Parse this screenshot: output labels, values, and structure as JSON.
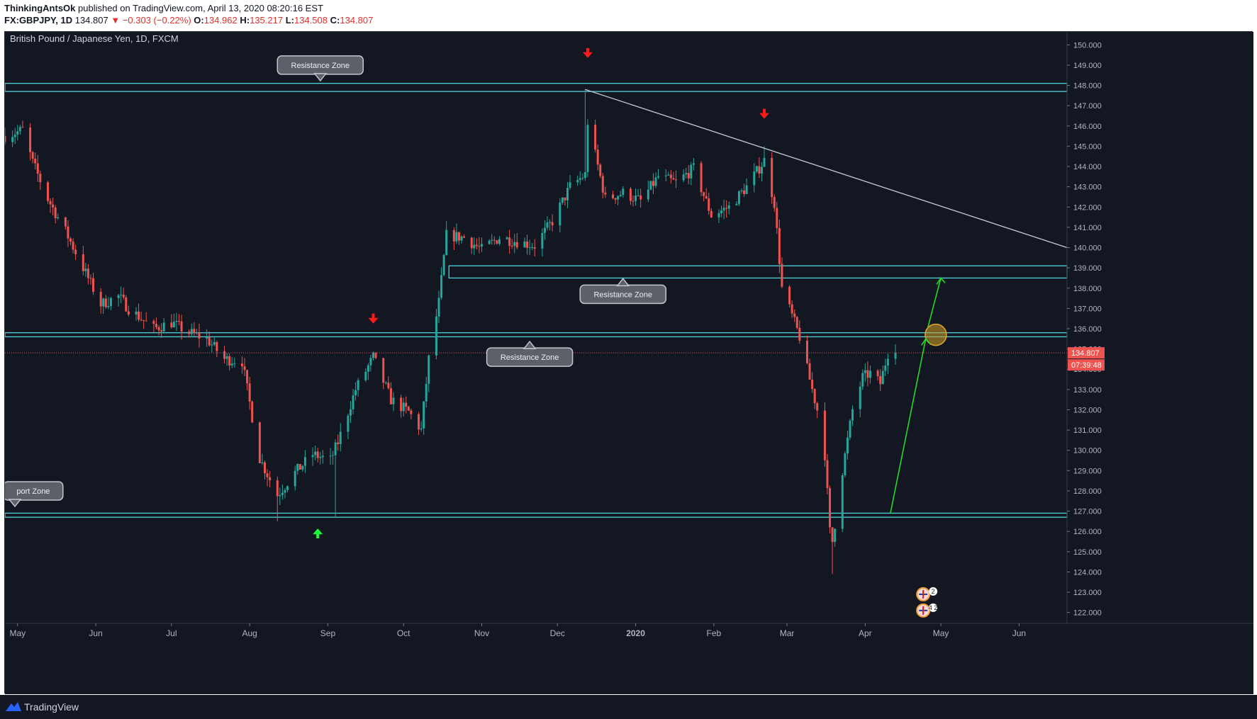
{
  "header": {
    "author": "ThinkingAntsOk",
    "published_text": " published on TradingView.com, April 13, 2020 08:20:16 EST",
    "symbol": "FX:GBPJPY, 1D",
    "last": "134.807",
    "change": "▼ −0.303 (−0.22%)",
    "o_label": "O:",
    "o_value": "134.962",
    "h_label": "H:",
    "h_value": "135.217",
    "l_label": "L:",
    "l_value": "134.508",
    "c_label": "C:",
    "c_value": "134.807"
  },
  "footer": {
    "brand": "TradingView"
  },
  "colors": {
    "background": "#131722",
    "up": "#26a69a",
    "down": "#ef5350",
    "zone": "#4fd1d9",
    "trendline": "#c9ccd6",
    "projection": "#26d926",
    "signal_down": "#ff1a1a",
    "signal_up": "#1aff3a",
    "price_label": "#ef5350"
  },
  "chart_data": {
    "type": "candlestick",
    "title": "British Pound / Japanese Yen, 1D, FXCM",
    "price_axis": {
      "min": 121.5,
      "max": 150.5,
      "ticks": [
        "150.000",
        "149.000",
        "148.000",
        "147.000",
        "146.000",
        "145.000",
        "144.000",
        "143.000",
        "142.000",
        "141.000",
        "140.000",
        "139.000",
        "138.000",
        "137.000",
        "136.000",
        "135.000",
        "134.000",
        "133.000",
        "132.000",
        "131.000",
        "130.000",
        "129.000",
        "128.000",
        "127.000",
        "126.000",
        "125.000",
        "124.000",
        "123.000",
        "122.000"
      ]
    },
    "time_axis": {
      "start": "2019-04-26",
      "end": "2020-06-20",
      "ticks": [
        {
          "label": "May",
          "date": "2019-05-01",
          "bold": false
        },
        {
          "label": "Jun",
          "date": "2019-06-01",
          "bold": false
        },
        {
          "label": "Jul",
          "date": "2019-07-01",
          "bold": false
        },
        {
          "label": "Aug",
          "date": "2019-08-01",
          "bold": false
        },
        {
          "label": "Sep",
          "date": "2019-09-01",
          "bold": false
        },
        {
          "label": "Oct",
          "date": "2019-10-01",
          "bold": false
        },
        {
          "label": "Nov",
          "date": "2019-11-01",
          "bold": false
        },
        {
          "label": "Dec",
          "date": "2019-12-01",
          "bold": false
        },
        {
          "label": "2020",
          "date": "2020-01-01",
          "bold": true
        },
        {
          "label": "Feb",
          "date": "2020-02-01",
          "bold": false
        },
        {
          "label": "Mar",
          "date": "2020-03-01",
          "bold": false
        },
        {
          "label": "Apr",
          "date": "2020-04-01",
          "bold": false
        },
        {
          "label": "May",
          "date": "2020-05-01",
          "bold": false
        },
        {
          "label": "Jun",
          "date": "2020-06-01",
          "bold": false
        }
      ]
    },
    "current_price": {
      "value": 134.807,
      "label": "134.807",
      "countdown": "07:39:48"
    },
    "close_anchors": [
      [
        "2019-04-26",
        145.5
      ],
      [
        "2019-05-03",
        145.8
      ],
      [
        "2019-05-07",
        144.2
      ],
      [
        "2019-05-13",
        142.4
      ],
      [
        "2019-05-20",
        140.8
      ],
      [
        "2019-05-27",
        139.0
      ],
      [
        "2019-06-03",
        137.2
      ],
      [
        "2019-06-10",
        137.6
      ],
      [
        "2019-06-14",
        137.0
      ],
      [
        "2019-06-24",
        136.0
      ],
      [
        "2019-07-01",
        136.3
      ],
      [
        "2019-07-08",
        135.8
      ],
      [
        "2019-07-15",
        135.5
      ],
      [
        "2019-07-22",
        134.5
      ],
      [
        "2019-07-29",
        134.4
      ],
      [
        "2019-08-05",
        129.6
      ],
      [
        "2019-08-12",
        127.8
      ],
      [
        "2019-08-19",
        128.9
      ],
      [
        "2019-08-26",
        129.8
      ],
      [
        "2019-09-02",
        129.5
      ],
      [
        "2019-09-05",
        130.4
      ],
      [
        "2019-09-12",
        133.0
      ],
      [
        "2019-09-19",
        134.6
      ],
      [
        "2019-09-26",
        132.5
      ],
      [
        "2019-10-03",
        131.9
      ],
      [
        "2019-10-08",
        131.0
      ],
      [
        "2019-10-11",
        134.5
      ],
      [
        "2019-10-15",
        137.3
      ],
      [
        "2019-10-18",
        140.6
      ],
      [
        "2019-10-25",
        140.5
      ],
      [
        "2019-11-01",
        139.9
      ],
      [
        "2019-11-08",
        140.5
      ],
      [
        "2019-11-15",
        140.3
      ],
      [
        "2019-11-22",
        140.1
      ],
      [
        "2019-11-29",
        141.3
      ],
      [
        "2019-12-06",
        143.0
      ],
      [
        "2019-12-12",
        143.6
      ],
      [
        "2019-12-13",
        146.2
      ],
      [
        "2019-12-20",
        142.4
      ],
      [
        "2019-12-27",
        142.7
      ],
      [
        "2020-01-03",
        142.3
      ],
      [
        "2020-01-10",
        143.5
      ],
      [
        "2020-01-17",
        143.2
      ],
      [
        "2020-01-24",
        143.9
      ],
      [
        "2020-01-31",
        141.6
      ],
      [
        "2020-02-07",
        142.0
      ],
      [
        "2020-02-14",
        143.0
      ],
      [
        "2020-02-21",
        144.3
      ],
      [
        "2020-02-25",
        142.2
      ],
      [
        "2020-02-28",
        138.0
      ],
      [
        "2020-03-06",
        135.6
      ],
      [
        "2020-03-09",
        134.0
      ],
      [
        "2020-03-13",
        132.0
      ],
      [
        "2020-03-16",
        129.8
      ],
      [
        "2020-03-18",
        126.0
      ],
      [
        "2020-03-19",
        125.5
      ],
      [
        "2020-03-23",
        129.0
      ],
      [
        "2020-03-27",
        132.0
      ],
      [
        "2020-03-31",
        133.6
      ],
      [
        "2020-04-03",
        133.8
      ],
      [
        "2020-04-07",
        133.3
      ],
      [
        "2020-04-10",
        134.8
      ],
      [
        "2020-04-13",
        134.807
      ]
    ],
    "lows": {
      "2019-08-12": 126.5,
      "2019-09-04": 126.7,
      "2020-03-19": 123.9
    },
    "highs": {
      "2019-12-12": 147.8,
      "2020-02-21": 145.0
    },
    "zones": [
      {
        "y1": 148.1,
        "y2": 147.7,
        "from": "2019-04-26",
        "to": "2020-06-20"
      },
      {
        "y1": 139.1,
        "y2": 138.5,
        "from": "2019-10-19",
        "to": "2020-06-20"
      },
      {
        "y1": 135.8,
        "y2": 135.6,
        "from": "2019-04-26",
        "to": "2020-06-20"
      },
      {
        "y1": 126.9,
        "y2": 126.7,
        "from": "2019-04-26",
        "to": "2020-06-20"
      }
    ],
    "zone_labels": [
      {
        "text": "Resistance Zone",
        "date": "2019-08-29",
        "price": 149.0,
        "pointer": "down"
      },
      {
        "text": "Resistance Zone",
        "date": "2019-12-27",
        "price": 137.7,
        "pointer": "up"
      },
      {
        "text": "Resistance Zone",
        "date": "2019-11-20",
        "price": 134.6,
        "pointer": "up"
      },
      {
        "text": "port Zone",
        "date": "2019-04-26",
        "price": 128.0,
        "pointer": "down"
      }
    ],
    "trendline": {
      "from": [
        "2019-12-12",
        147.8
      ],
      "to": [
        "2020-06-20",
        140.0
      ]
    },
    "projection": {
      "from": [
        "2020-04-11",
        126.9
      ],
      "via": [
        "2020-04-25",
        135.5
      ],
      "to": [
        "2020-05-01",
        138.5
      ],
      "target_circle": [
        "2020-04-29",
        135.7
      ]
    },
    "signals": [
      {
        "date": "2019-12-13",
        "price": 149.6,
        "dir": "down"
      },
      {
        "date": "2020-02-21",
        "price": 146.6,
        "dir": "down"
      },
      {
        "date": "2019-09-19",
        "price": 136.5,
        "dir": "down"
      },
      {
        "date": "2019-08-28",
        "price": 125.9,
        "dir": "up"
      }
    ],
    "event_icons": [
      {
        "date": "2020-04-24",
        "price": 122.9,
        "badge": "2"
      },
      {
        "date": "2020-04-24",
        "price": 122.1,
        "badge": "4 2"
      }
    ]
  }
}
